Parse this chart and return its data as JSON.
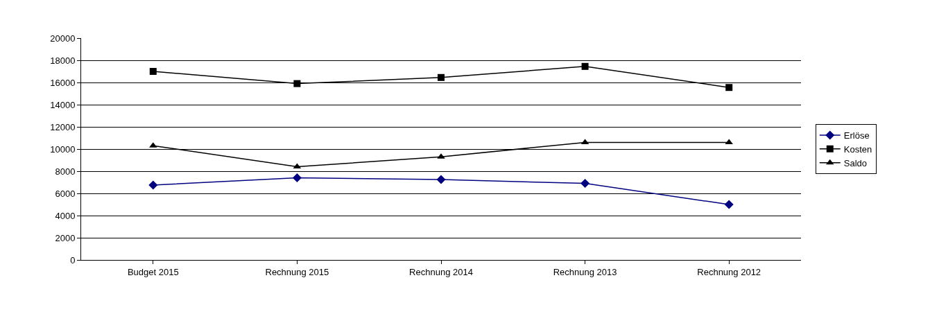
{
  "chart_data": {
    "type": "line",
    "categories": [
      "Budget 2015",
      "Rechnung 2015",
      "Rechnung 2014",
      "Rechnung 2013",
      "Rechnung 2012"
    ],
    "series": [
      {
        "name": "Erlöse",
        "color": "#000080",
        "marker": "diamond",
        "values": [
          6750,
          7400,
          7250,
          6900,
          5000
        ]
      },
      {
        "name": "Kosten",
        "color": "#000000",
        "marker": "square",
        "values": [
          17000,
          15900,
          16450,
          17450,
          15550
        ]
      },
      {
        "name": "Saldo",
        "color": "#000000",
        "marker": "triangle",
        "values": [
          10300,
          8400,
          9300,
          10600,
          10600
        ]
      }
    ],
    "ylim": [
      0,
      20000
    ],
    "yticks": [
      0,
      2000,
      4000,
      6000,
      8000,
      10000,
      12000,
      14000,
      16000,
      18000,
      20000
    ],
    "grid": "y",
    "legend": "right",
    "line_style": "solid"
  }
}
